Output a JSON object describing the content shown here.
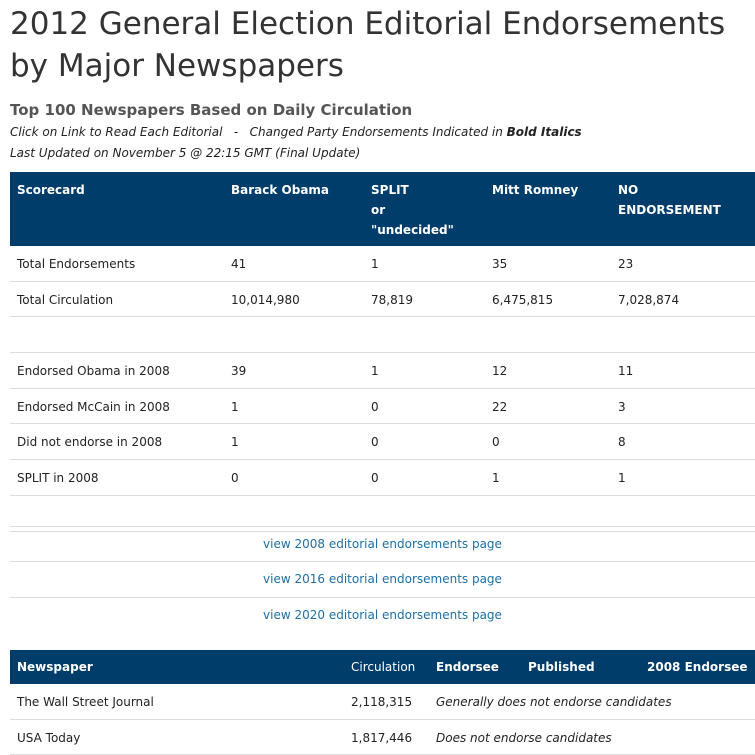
{
  "page": {
    "title": "2012 General Election Editorial Endorsements by Major Newspapers",
    "subtitle": "Top 100 Newspapers Based on Daily Circulation",
    "note_line1_a": "Click on Link to Read Each Editorial   -   Changed Party Endorsements Indicated in ",
    "note_line1_b": "Bold Italics",
    "note_line2": "Last Updated on November 5 @ 22:15 GMT (Final Update)"
  },
  "scorecard": {
    "headers": [
      "Scorecard",
      "Barack Obama",
      "SPLIT",
      "or",
      "\"undecided\"",
      "Mitt Romney",
      "NO",
      "ENDORSEMENT"
    ],
    "rows": [
      [
        "Total Endorsements",
        "41",
        "1",
        "35",
        "23"
      ],
      [
        "Total Circulation",
        "10,014,980",
        "78,819",
        "6,475,815",
        "7,028,874"
      ],
      [
        "",
        "",
        "",
        "",
        ""
      ],
      [
        "Endorsed Obama in 2008",
        "39",
        "1",
        "12",
        "11"
      ],
      [
        "Endorsed McCain in 2008",
        "1",
        "0",
        "22",
        "3"
      ],
      [
        "Did not endorse in 2008",
        "1",
        "0",
        "0",
        "8"
      ],
      [
        "SPLIT in 2008",
        "0",
        "0",
        "1",
        "1"
      ],
      [
        "",
        "",
        "",
        "",
        ""
      ]
    ]
  },
  "links": [
    "view 2008 editorial endorsements page",
    "view 2016 editorial endorsements page",
    "view 2020 editorial endorsements page"
  ],
  "papers": {
    "headers": [
      "Newspaper",
      "Circulation",
      "Endorsee",
      "Published",
      "2008 Endorsee"
    ],
    "rows": [
      [
        "The Wall Street Journal",
        "2,118,315",
        "Generally does not endorse candidates"
      ],
      [
        "USA Today",
        "1,817,446",
        "Does not endorse candidates"
      ]
    ]
  }
}
